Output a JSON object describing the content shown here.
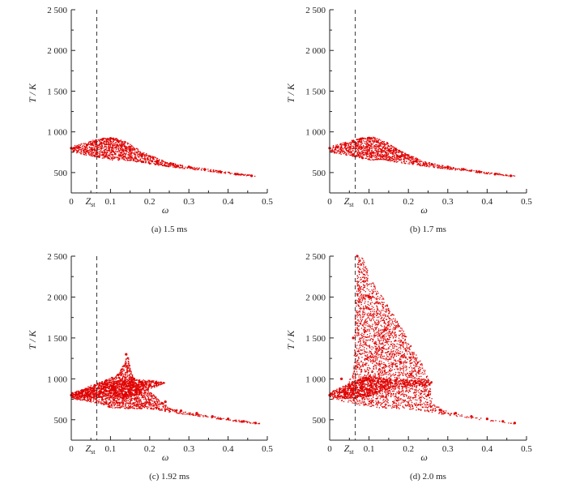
{
  "chart_data": [
    {
      "type": "scatter",
      "caption": "(a) 1.5 ms",
      "xlabel": "ω",
      "ylabel": "T / K",
      "xlim": [
        0,
        0.5
      ],
      "ylim": [
        250,
        2500
      ],
      "xticks": [
        "0",
        "0.1",
        "0.2",
        "0.3",
        "0.4",
        "0.5"
      ],
      "yticks": [
        "500",
        "1 000",
        "1 500",
        "2 000",
        "2 500"
      ],
      "reference_line": {
        "label": "Zst",
        "x": 0.065
      },
      "color": "#e00000",
      "series": [
        {
          "x": [
            0.0,
            0.02,
            0.04,
            0.06,
            0.08,
            0.1,
            0.12,
            0.15,
            0.18,
            0.22,
            0.26,
            0.3,
            0.34,
            0.38,
            0.42,
            0.46
          ],
          "y": [
            800,
            810,
            840,
            880,
            910,
            920,
            880,
            780,
            700,
            640,
            600,
            570,
            540,
            510,
            480,
            460
          ]
        }
      ]
    },
    {
      "type": "scatter",
      "caption": "(b) 1.7 ms",
      "xlabel": "ω",
      "ylabel": "T / K",
      "xlim": [
        0,
        0.5
      ],
      "ylim": [
        250,
        2500
      ],
      "xticks": [
        "0",
        "0.1",
        "0.2",
        "0.3",
        "0.4",
        "0.5"
      ],
      "yticks": [
        "500",
        "1 000",
        "1 500",
        "2 000",
        "2 500"
      ],
      "reference_line": {
        "label": "Zst",
        "x": 0.065
      },
      "color": "#e00000",
      "series": [
        {
          "x": [
            0.0,
            0.02,
            0.04,
            0.06,
            0.08,
            0.1,
            0.12,
            0.15,
            0.18,
            0.22,
            0.26,
            0.3,
            0.34,
            0.38,
            0.42,
            0.46
          ],
          "y": [
            800,
            810,
            845,
            885,
            915,
            925,
            880,
            775,
            700,
            640,
            600,
            570,
            540,
            510,
            480,
            460
          ]
        }
      ]
    },
    {
      "type": "scatter",
      "caption": "(c) 1.92 ms",
      "xlabel": "ω",
      "ylabel": "T / K",
      "xlim": [
        0,
        0.5
      ],
      "ylim": [
        250,
        2500
      ],
      "xticks": [
        "0",
        "0.1",
        "0.2",
        "0.3",
        "0.4",
        "0.5"
      ],
      "yticks": [
        "500",
        "1 000",
        "1 500",
        "2 000",
        "2 500"
      ],
      "reference_line": {
        "label": "Zst",
        "x": 0.065
      },
      "color": "#e00000",
      "series": [
        {
          "x": [
            0.0,
            0.03,
            0.06,
            0.09,
            0.12,
            0.14,
            0.16,
            0.2,
            0.24,
            0.28,
            0.32,
            0.36,
            0.4,
            0.44,
            0.47
          ],
          "y": [
            800,
            850,
            920,
            980,
            1050,
            1300,
            1000,
            930,
            720,
            610,
            580,
            540,
            510,
            480,
            460
          ]
        }
      ]
    },
    {
      "type": "scatter",
      "caption": "(d) 2.0 ms",
      "xlabel": "ω",
      "ylabel": "T / K",
      "xlim": [
        0,
        0.5
      ],
      "ylim": [
        250,
        2500
      ],
      "xticks": [
        "0",
        "0.1",
        "0.2",
        "0.3",
        "0.4",
        "0.5"
      ],
      "yticks": [
        "500",
        "1 000",
        "1 500",
        "2 000",
        "2 500"
      ],
      "reference_line": {
        "label": "Zst",
        "x": 0.065
      },
      "color": "#e00000",
      "series": [
        {
          "x": [
            0.0,
            0.03,
            0.06,
            0.07,
            0.1,
            0.14,
            0.18,
            0.22,
            0.25,
            0.28,
            0.32,
            0.36,
            0.4,
            0.44,
            0.47
          ],
          "y": [
            800,
            1000,
            1500,
            2500,
            2000,
            1600,
            1200,
            950,
            800,
            620,
            580,
            540,
            510,
            480,
            460
          ]
        }
      ]
    }
  ]
}
